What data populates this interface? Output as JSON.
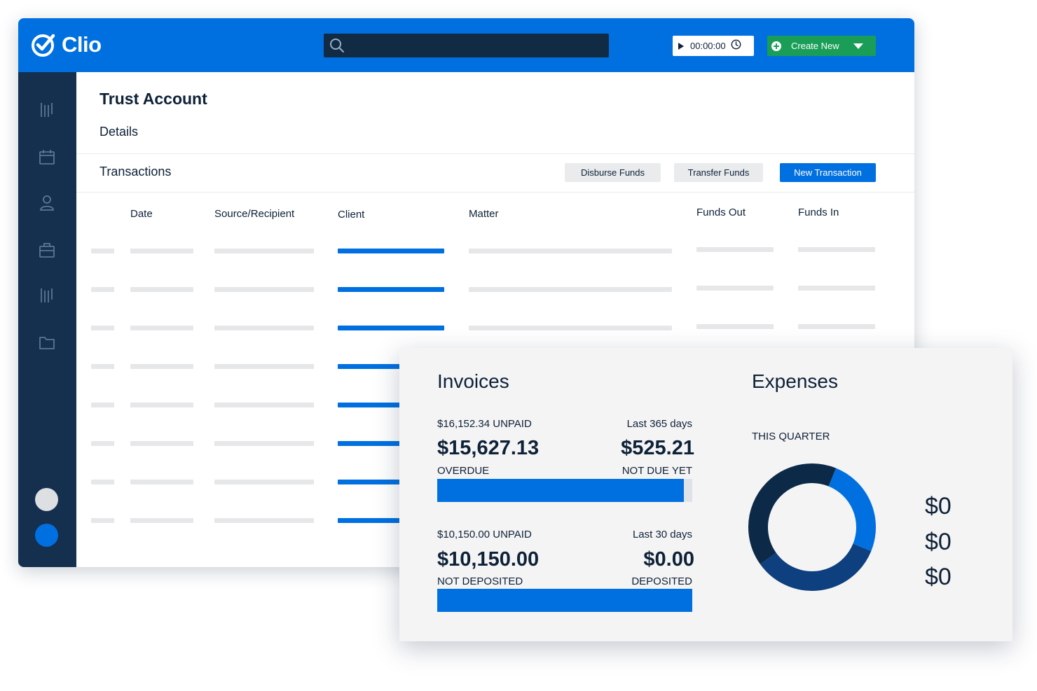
{
  "app": {
    "name": "Clio",
    "search": {
      "placeholder": ""
    },
    "timer": {
      "time": "00:00:00"
    },
    "create_new_label": "Create New"
  },
  "sidebar": {
    "icons": [
      "ledger-icon",
      "calendar-icon",
      "person-icon",
      "briefcase-icon",
      "ledger-icon",
      "folder-icon"
    ]
  },
  "page": {
    "title": "Trust Account",
    "sections": {
      "details": "Details",
      "transactions": "Transactions"
    },
    "actions": {
      "disburse": "Disburse Funds",
      "transfer": "Transfer Funds",
      "new_transaction": "New Transaction"
    },
    "table": {
      "columns": [
        "Date",
        "Source/Recipient",
        "Client",
        "Matter",
        "Funds Out",
        "Funds In"
      ],
      "placeholder_row_count": 8
    }
  },
  "invoices": {
    "title": "Invoices",
    "year": {
      "unpaid": "$16,152.34 UNPAID",
      "range": "Last 365 days",
      "overdue_amount": "$15,627.13",
      "overdue_label": "OVERDUE",
      "not_due_amount": "$525.21",
      "not_due_label": "NOT DUE YET",
      "overdue_fraction": 0.967
    },
    "month": {
      "unpaid": "$10,150.00 UNPAID",
      "range": "Last 30 days",
      "not_deposited_amount": "$10,150.00",
      "not_deposited_label": "NOT DEPOSITED",
      "deposited_amount": "$0.00",
      "deposited_label": "DEPOSITED",
      "not_deposited_fraction": 1.0
    }
  },
  "expenses": {
    "title": "Expenses",
    "period": "THIS QUARTER",
    "values": [
      "$0",
      "$0",
      "$0"
    ],
    "donut_segments": [
      {
        "fraction": 0.25,
        "color": "#0070e0"
      },
      {
        "fraction": 0.34,
        "color": "#0e3f7e"
      },
      {
        "fraction": 0.41,
        "color": "#0c2a48"
      }
    ]
  },
  "colors": {
    "brand_blue": "#0070e0",
    "navy": "#152f4e",
    "search_bg": "#112b45",
    "create_green": "#1a9e57",
    "skeleton": "#e6e7e9"
  }
}
